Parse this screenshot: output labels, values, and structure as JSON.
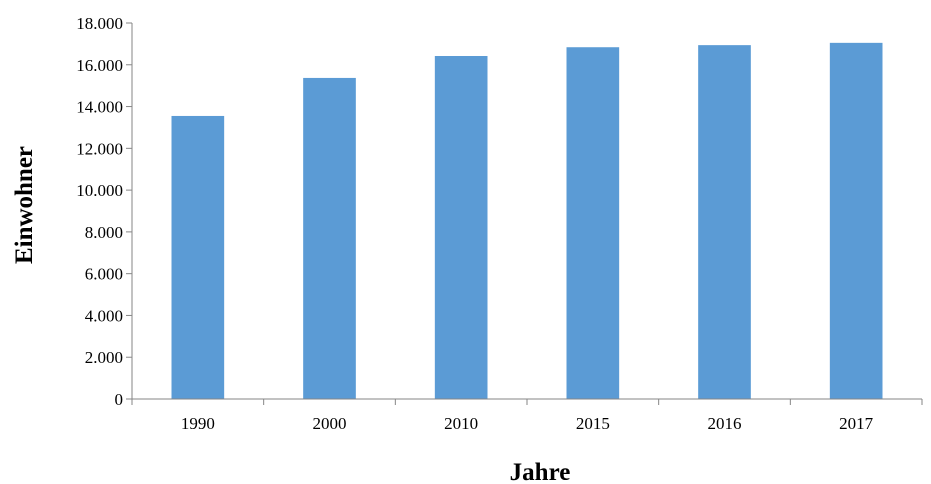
{
  "chart_data": {
    "type": "bar",
    "title": "",
    "categories": [
      "1990",
      "2000",
      "2010",
      "2015",
      "2016",
      "2017"
    ],
    "values": [
      13550,
      15370,
      16420,
      16840,
      16940,
      17050
    ],
    "xlabel": "Jahre",
    "ylabel": "Einwohner",
    "ylim": [
      0,
      18000
    ],
    "y_ticks": [
      "0",
      "2.000",
      "4.000",
      "6.000",
      "8.000",
      "10.000",
      "12.000",
      "14.000",
      "16.000",
      "18.000"
    ],
    "grid": false,
    "legend": "none",
    "bar_color": "#5b9bd5",
    "axis_color": "#868686"
  }
}
